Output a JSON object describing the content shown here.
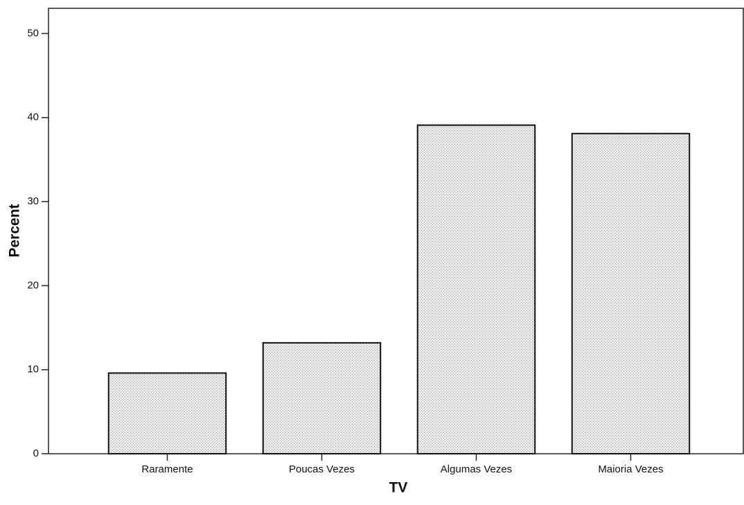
{
  "chart_data": {
    "type": "bar",
    "x_label": "TV",
    "y_label": "Percent",
    "categories": [
      "Raramente",
      "Poucas Vezes",
      "Algumas Vezes",
      "Maioria Vezes"
    ],
    "values": [
      9.6,
      13.2,
      39.1,
      38.1
    ],
    "color": "#dedede",
    "ylim": [
      0,
      53
    ],
    "yticks": [
      0,
      10,
      20,
      30,
      40,
      50
    ],
    "grid": false
  }
}
